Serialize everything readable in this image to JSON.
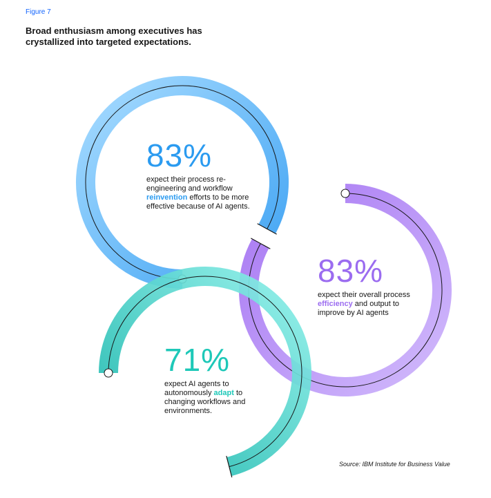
{
  "figure_label": "Figure 7",
  "title": "Broad enthusiasm among executives has crystallized into targeted expectations.",
  "source": "Source: IBM Institute for Business Value",
  "colors": {
    "reinvention": "#2b9bf0",
    "efficiency": "#9b6cf0",
    "adapt": "#1ec8b8"
  },
  "chart_data": {
    "type": "radial-progress",
    "title": "Broad enthusiasm among executives has crystallized into targeted expectations.",
    "series": [
      {
        "value": 83,
        "label": "83%",
        "text_before": "expect their process re-engineering and workflow ",
        "keyword": "reinvention",
        "text_after": " efforts to be more effective because of AI agents."
      },
      {
        "value": 83,
        "label": "83%",
        "text_before": "expect their overall process ",
        "keyword": "efficiency",
        "text_after": " and output to improve by AI agents"
      },
      {
        "value": 71,
        "label": "71%",
        "text_before": "expect AI agents to autonomously ",
        "keyword": "adapt",
        "text_after": " to changing workflows and environments."
      }
    ]
  }
}
